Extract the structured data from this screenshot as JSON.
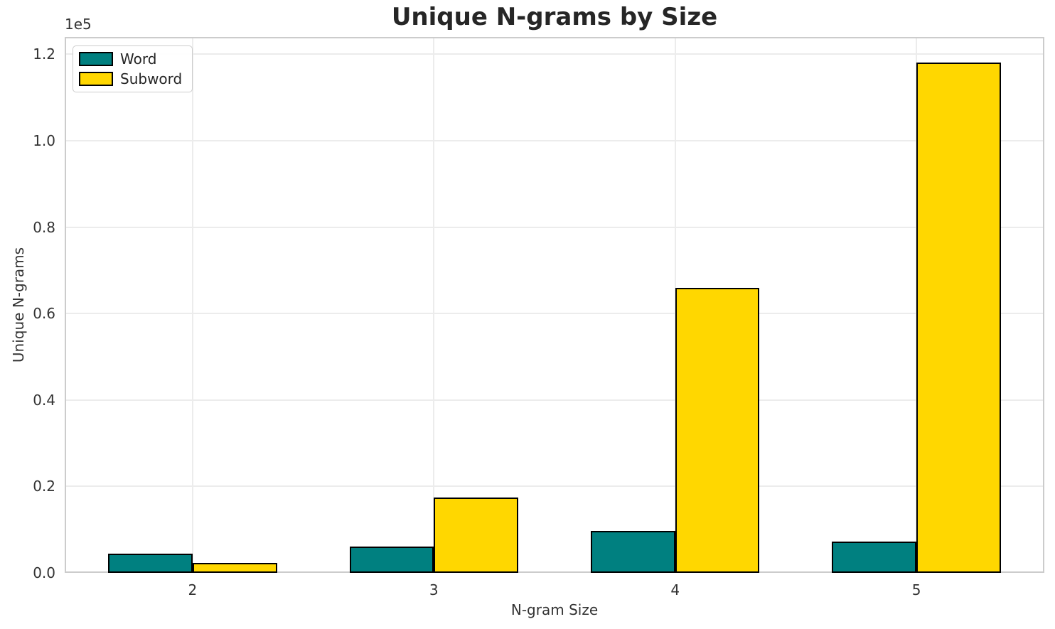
{
  "chart_data": {
    "type": "bar",
    "title": "Unique N-grams by Size",
    "xlabel": "N-gram Size",
    "ylabel": "Unique N-grams",
    "y_offset_text": "1e5",
    "categories": [
      "2",
      "3",
      "4",
      "5"
    ],
    "x": [
      2,
      3,
      4,
      5
    ],
    "series": [
      {
        "name": "Word",
        "color": "#008080",
        "values": [
          4500,
          6100,
          9700,
          7200
        ]
      },
      {
        "name": "Subword",
        "color": "#FFD700",
        "values": [
          2300,
          17400,
          66000,
          118000
        ]
      }
    ],
    "bar_width": 0.35,
    "bar_edge_color": "#000000",
    "xlim": [
      1.47,
      5.53
    ],
    "ylim": [
      0,
      124000
    ],
    "yticks": [
      0,
      20000,
      40000,
      60000,
      80000,
      100000,
      120000
    ],
    "ytick_labels": [
      "0.0",
      "0.2",
      "0.4",
      "0.6",
      "0.8",
      "1.0",
      "1.2"
    ],
    "grid": true,
    "grid_color": "#ececec",
    "spine_color": "#cccccc",
    "legend": {
      "position": "upper left",
      "labels": [
        "Word",
        "Subword"
      ]
    }
  }
}
